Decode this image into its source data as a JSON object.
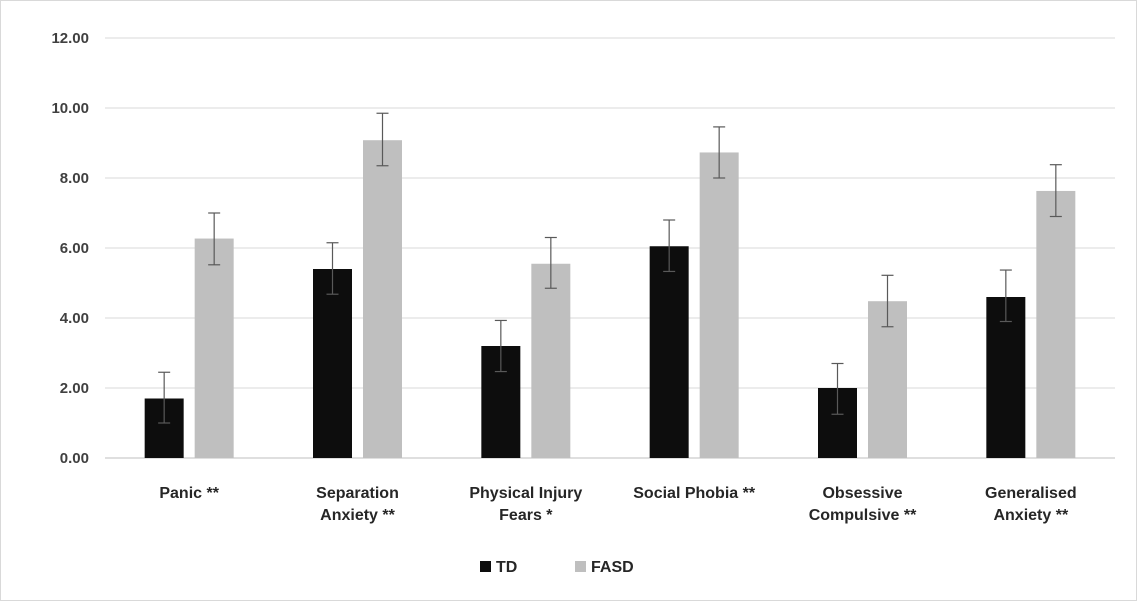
{
  "chart_data": {
    "type": "bar",
    "categories": [
      [
        "Panic **"
      ],
      [
        "Separation",
        "Anxiety **"
      ],
      [
        "Physical Injury",
        "Fears *"
      ],
      [
        "Social Phobia **"
      ],
      [
        "Obsessive",
        "Compulsive **"
      ],
      [
        "Generalised",
        "Anxiety **"
      ]
    ],
    "series": [
      {
        "name": "TD",
        "color": "#0d0d0d",
        "values": [
          1.7,
          5.4,
          3.2,
          6.05,
          2.0,
          4.6
        ],
        "error_low": [
          1.0,
          4.68,
          2.47,
          5.33,
          1.25,
          3.9
        ],
        "error_high": [
          2.45,
          6.15,
          3.93,
          6.8,
          2.7,
          5.37
        ]
      },
      {
        "name": "FASD",
        "color": "#bfbfbf",
        "values": [
          6.27,
          9.08,
          5.55,
          8.73,
          4.48,
          7.63
        ],
        "error_low": [
          5.52,
          8.35,
          4.85,
          8.0,
          3.75,
          6.9
        ],
        "error_high": [
          7.0,
          9.85,
          6.3,
          9.46,
          5.22,
          8.38
        ]
      }
    ],
    "y_ticks": [
      "0.00",
      "2.00",
      "4.00",
      "6.00",
      "8.00",
      "10.00",
      "12.00"
    ],
    "ylim": [
      0,
      12
    ],
    "grid": true,
    "legend_position": "bottom-center"
  }
}
